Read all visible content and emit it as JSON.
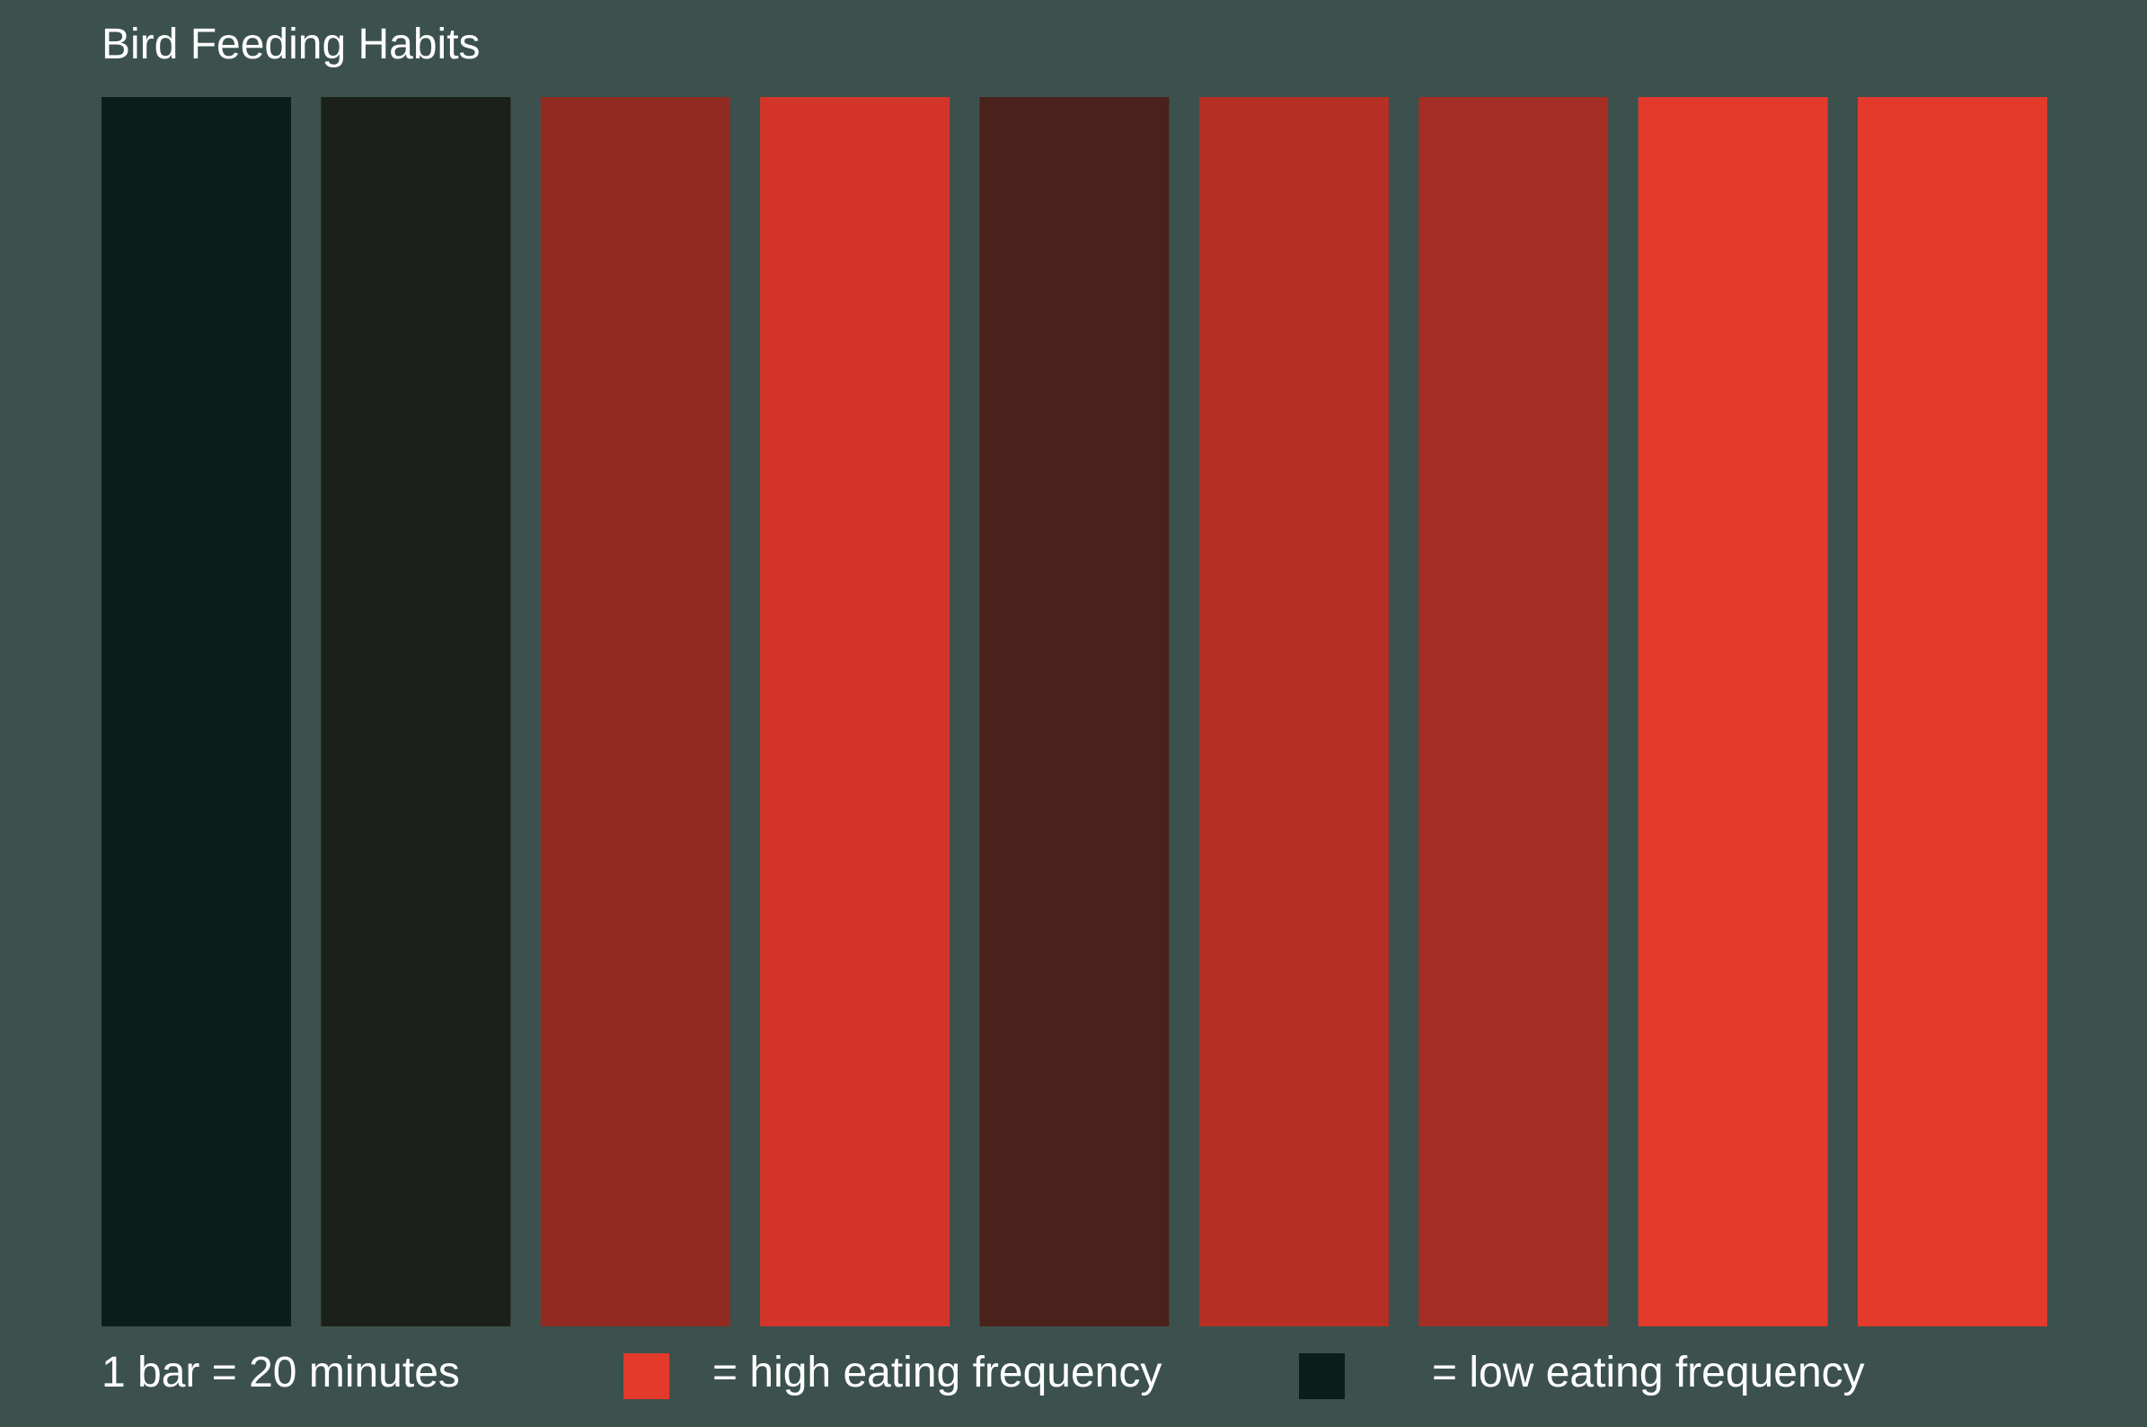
{
  "chart_data": {
    "type": "heatmap",
    "title": "Bird Feeding Habits",
    "note": "1 bar = 20 minutes",
    "bar_unit_minutes": 20,
    "bars": [
      {
        "color": "#0a1f1a",
        "level": "low"
      },
      {
        "color": "#1b201b",
        "level": "low"
      },
      {
        "color": "#912b22",
        "level": "medium"
      },
      {
        "color": "#d4352a",
        "level": "high"
      },
      {
        "color": "#4a211b",
        "level": "low"
      },
      {
        "color": "#b52f25",
        "level": "medium"
      },
      {
        "color": "#a42e24",
        "level": "medium"
      },
      {
        "color": "#e33a2c",
        "level": "high"
      },
      {
        "color": "#e33a2c",
        "level": "high"
      }
    ],
    "legend": [
      {
        "key": "high",
        "label": "= high eating frequency",
        "color": "#e33a2c"
      },
      {
        "key": "low",
        "label": "= low eating frequency",
        "color": "#0a1f1a"
      }
    ],
    "background_color": "#3c514d"
  }
}
